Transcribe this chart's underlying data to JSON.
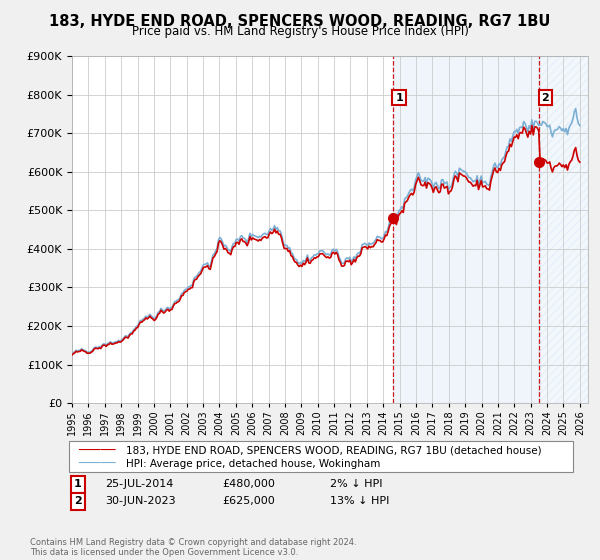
{
  "title": "183, HYDE END ROAD, SPENCERS WOOD, READING, RG7 1BU",
  "subtitle": "Price paid vs. HM Land Registry's House Price Index (HPI)",
  "ylim": [
    0,
    900000
  ],
  "yticks": [
    0,
    100000,
    200000,
    300000,
    400000,
    500000,
    600000,
    700000,
    800000,
    900000
  ],
  "legend_line1": "183, HYDE END ROAD, SPENCERS WOOD, READING, RG7 1BU (detached house)",
  "legend_line2": "HPI: Average price, detached house, Wokingham",
  "annotation1_label": "1",
  "annotation1_date": "25-JUL-2014",
  "annotation1_price": "£480,000",
  "annotation1_hpi": "2% ↓ HPI",
  "annotation2_label": "2",
  "annotation2_date": "30-JUN-2023",
  "annotation2_price": "£625,000",
  "annotation2_hpi": "13% ↓ HPI",
  "footer": "Contains HM Land Registry data © Crown copyright and database right 2024.\nThis data is licensed under the Open Government Licence v3.0.",
  "line_color_hpi": "#7bafd4",
  "line_color_price": "#cc0000",
  "annotation_color": "#cc0000",
  "background_color": "#f0f0f0",
  "plot_bg_color": "#ffffff",
  "grid_color": "#cccccc",
  "shade_color": "#ddeeff",
  "sale1_year": 2014.58,
  "sale1_price": 480000,
  "sale2_year": 2023.5,
  "sale2_price": 625000,
  "xlim_start": 1995,
  "xlim_end": 2026
}
